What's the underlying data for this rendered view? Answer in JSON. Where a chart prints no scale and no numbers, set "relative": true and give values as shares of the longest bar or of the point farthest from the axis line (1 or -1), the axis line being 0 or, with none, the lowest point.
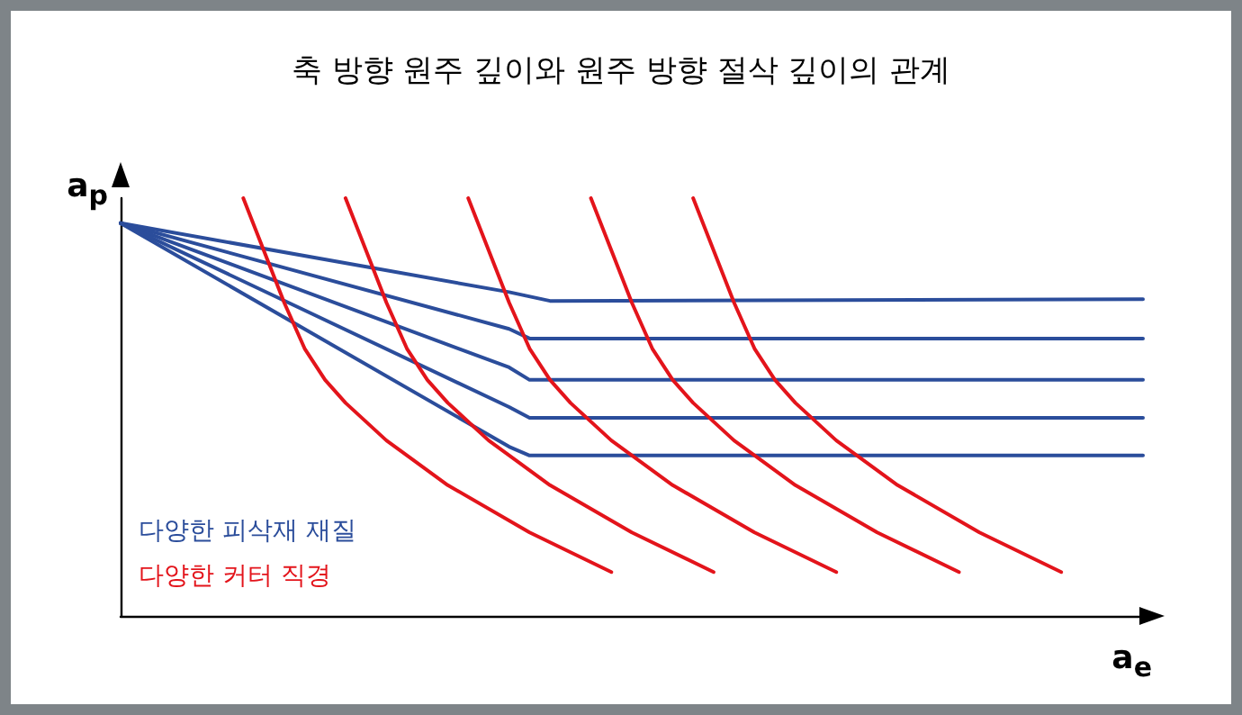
{
  "chart_data": {
    "type": "line",
    "title": "축 방향 원주 깊이와 원주 방향 절삭 깊이의 관계",
    "xlabel": "a$_{e}$",
    "ylabel": "a$_{p}$",
    "relative": true,
    "marker": "none",
    "line_style": "solid",
    "categories": [
      null,
      null,
      null,
      null,
      null,
      null,
      null,
      null,
      null,
      null,
      null,
      null,
      null,
      null,
      null,
      null,
      null,
      null,
      null,
      null,
      null,
      null,
      null,
      null,
      null,
      null,
      null,
      null,
      null,
      null,
      null,
      null,
      null,
      null,
      null,
      null,
      null,
      null,
      null,
      null,
      null,
      null,
      null,
      null,
      null,
      null,
      null,
      null,
      null,
      null,
      null
    ],
    "annotations": [
      "다양한 피삭재 재질",
      "다양한 커터 직경"
    ],
    "series": [
      {
        "color": "#2b4d9b",
        "values": [
          0.94,
          null,
          null,
          null,
          null,
          null,
          null,
          null,
          null,
          null,
          null,
          null,
          null,
          null,
          null,
          null,
          null,
          null,
          null,
          0.775,
          null,
          0.754,
          null,
          null,
          null,
          null,
          null,
          null,
          null,
          null,
          null,
          null,
          null,
          null,
          null,
          null,
          null,
          null,
          null,
          null,
          null,
          null,
          null,
          null,
          null,
          null,
          null,
          null,
          null,
          null,
          0.758
        ]
      },
      {
        "color": "#2b4d9b",
        "values": [
          0.94,
          null,
          null,
          null,
          null,
          null,
          null,
          null,
          null,
          null,
          null,
          null,
          null,
          null,
          null,
          null,
          null,
          null,
          null,
          0.687,
          0.664,
          null,
          null,
          null,
          null,
          null,
          null,
          null,
          null,
          null,
          null,
          null,
          null,
          null,
          null,
          null,
          null,
          null,
          null,
          null,
          null,
          null,
          null,
          null,
          null,
          null,
          null,
          null,
          null,
          null,
          0.664
        ]
      },
      {
        "color": "#2b4d9b",
        "values": [
          0.94,
          null,
          null,
          null,
          null,
          null,
          null,
          null,
          null,
          null,
          null,
          null,
          null,
          null,
          null,
          null,
          null,
          null,
          null,
          0.595,
          0.565,
          null,
          null,
          null,
          null,
          null,
          null,
          null,
          null,
          null,
          null,
          null,
          null,
          null,
          null,
          null,
          null,
          null,
          null,
          null,
          null,
          null,
          null,
          null,
          null,
          null,
          null,
          null,
          null,
          null,
          0.565
        ]
      },
      {
        "color": "#2b4d9b",
        "values": [
          0.94,
          null,
          null,
          null,
          null,
          null,
          null,
          null,
          null,
          null,
          null,
          null,
          null,
          null,
          null,
          null,
          null,
          null,
          null,
          0.5,
          0.474,
          null,
          null,
          null,
          null,
          null,
          null,
          null,
          null,
          null,
          null,
          null,
          null,
          null,
          null,
          null,
          null,
          null,
          null,
          null,
          null,
          null,
          null,
          null,
          null,
          null,
          null,
          null,
          null,
          null,
          0.474
        ]
      },
      {
        "color": "#2b4d9b",
        "values": [
          0.94,
          null,
          null,
          null,
          null,
          null,
          null,
          null,
          null,
          null,
          null,
          null,
          null,
          null,
          null,
          null,
          null,
          null,
          null,
          0.405,
          0.384,
          null,
          null,
          null,
          null,
          null,
          null,
          null,
          null,
          null,
          null,
          null,
          null,
          null,
          null,
          null,
          null,
          null,
          null,
          null,
          null,
          null,
          null,
          null,
          null,
          null,
          null,
          null,
          null,
          null,
          0.384
        ]
      },
      {
        "color": "#e3141b",
        "values": [
          null,
          null,
          null,
          null,
          null,
          null,
          1.0,
          0.875,
          0.75,
          0.64,
          0.565,
          0.51,
          null,
          0.42,
          null,
          null,
          0.313,
          null,
          null,
          null,
          0.2,
          null,
          null,
          null,
          0.105,
          null,
          null,
          null,
          null,
          null,
          null,
          null,
          null,
          null,
          null,
          null,
          null,
          null,
          null,
          null,
          null,
          null,
          null,
          null,
          null,
          null,
          null,
          null,
          null,
          null,
          null
        ]
      },
      {
        "color": "#e3141b",
        "values": [
          null,
          null,
          null,
          null,
          null,
          null,
          null,
          null,
          null,
          null,
          null,
          1.0,
          0.875,
          0.75,
          0.64,
          0.565,
          0.51,
          null,
          0.42,
          null,
          null,
          0.313,
          null,
          null,
          null,
          0.2,
          null,
          null,
          null,
          0.105,
          null,
          null,
          null,
          null,
          null,
          null,
          null,
          null,
          null,
          null,
          null,
          null,
          null,
          null,
          null,
          null,
          null,
          null,
          null,
          null,
          null
        ]
      },
      {
        "color": "#e3141b",
        "values": [
          null,
          null,
          null,
          null,
          null,
          null,
          null,
          null,
          null,
          null,
          null,
          null,
          null,
          null,
          null,
          null,
          null,
          1.0,
          0.875,
          0.75,
          0.64,
          0.565,
          0.51,
          null,
          0.42,
          null,
          null,
          0.313,
          null,
          null,
          null,
          0.2,
          null,
          null,
          null,
          0.105,
          null,
          null,
          null,
          null,
          null,
          null,
          null,
          null,
          null,
          null,
          null,
          null,
          null,
          null,
          null
        ]
      },
      {
        "color": "#e3141b",
        "values": [
          null,
          null,
          null,
          null,
          null,
          null,
          null,
          null,
          null,
          null,
          null,
          null,
          null,
          null,
          null,
          null,
          null,
          null,
          null,
          null,
          null,
          null,
          null,
          1.0,
          0.875,
          0.75,
          0.64,
          0.565,
          0.51,
          null,
          0.42,
          null,
          null,
          0.313,
          null,
          null,
          null,
          0.2,
          null,
          null,
          null,
          0.105,
          null,
          null,
          null,
          null,
          null,
          null,
          null,
          null,
          null
        ]
      },
      {
        "color": "#e3141b",
        "values": [
          null,
          null,
          null,
          null,
          null,
          null,
          null,
          null,
          null,
          null,
          null,
          null,
          null,
          null,
          null,
          null,
          null,
          null,
          null,
          null,
          null,
          null,
          null,
          null,
          null,
          null,
          null,
          null,
          1.0,
          0.875,
          0.75,
          0.64,
          0.565,
          0.51,
          null,
          0.42,
          null,
          null,
          0.313,
          null,
          null,
          null,
          0.2,
          null,
          null,
          null,
          0.105,
          null,
          null,
          null,
          null
        ]
      }
    ]
  }
}
